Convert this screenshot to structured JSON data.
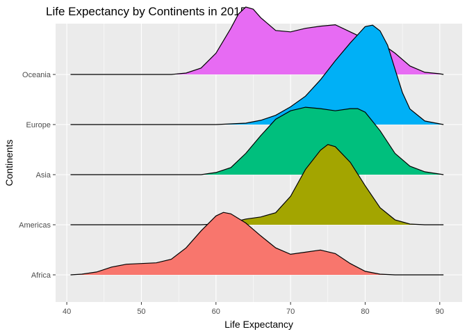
{
  "chart_data": {
    "type": "ridgeline",
    "title": "Life Expectancy by Continents in 2015",
    "xlabel": "Life Expectancy",
    "ylabel": "Continents",
    "xlim": [
      38.5,
      93
    ],
    "x_ticks": [
      40,
      50,
      60,
      70,
      80,
      90
    ],
    "categories": [
      "Africa",
      "Americas",
      "Asia",
      "Europe",
      "Oceania"
    ],
    "grid": true,
    "legend": "none",
    "series": [
      {
        "name": "Africa",
        "color": "#F8766D",
        "density": [
          [
            40.5,
            0
          ],
          [
            42,
            0.01
          ],
          [
            44,
            0.04
          ],
          [
            46,
            0.11
          ],
          [
            48,
            0.15
          ],
          [
            50,
            0.16
          ],
          [
            52,
            0.17
          ],
          [
            54,
            0.22
          ],
          [
            56,
            0.38
          ],
          [
            58,
            0.62
          ],
          [
            60,
            0.83
          ],
          [
            61,
            0.88
          ],
          [
            62,
            0.86
          ],
          [
            64,
            0.73
          ],
          [
            66,
            0.55
          ],
          [
            68,
            0.38
          ],
          [
            70,
            0.29
          ],
          [
            72,
            0.32
          ],
          [
            74,
            0.35
          ],
          [
            76,
            0.3
          ],
          [
            78,
            0.16
          ],
          [
            80,
            0.05
          ],
          [
            82,
            0.01
          ],
          [
            84,
            0
          ],
          [
            90.5,
            0
          ]
        ]
      },
      {
        "name": "Americas",
        "color": "#A3A500",
        "density": [
          [
            40.5,
            0
          ],
          [
            58,
            0
          ],
          [
            60,
            0.01
          ],
          [
            62,
            0.03
          ],
          [
            64,
            0.08
          ],
          [
            66,
            0.11
          ],
          [
            68,
            0.17
          ],
          [
            70,
            0.4
          ],
          [
            72,
            0.78
          ],
          [
            74,
            1.05
          ],
          [
            75,
            1.13
          ],
          [
            76,
            1.1
          ],
          [
            78,
            0.88
          ],
          [
            80,
            0.55
          ],
          [
            82,
            0.24
          ],
          [
            84,
            0.07
          ],
          [
            86,
            0.01
          ],
          [
            88,
            0
          ],
          [
            90.5,
            0
          ]
        ]
      },
      {
        "name": "Asia",
        "color": "#00BF7D",
        "density": [
          [
            40.5,
            0
          ],
          [
            58,
            0
          ],
          [
            60,
            0.03
          ],
          [
            62,
            0.1
          ],
          [
            64,
            0.3
          ],
          [
            66,
            0.55
          ],
          [
            68,
            0.78
          ],
          [
            70,
            0.9
          ],
          [
            72,
            0.95
          ],
          [
            74,
            0.93
          ],
          [
            76,
            0.9
          ],
          [
            78,
            0.93
          ],
          [
            79,
            0.93
          ],
          [
            80,
            0.88
          ],
          [
            82,
            0.62
          ],
          [
            84,
            0.3
          ],
          [
            86,
            0.12
          ],
          [
            88,
            0.04
          ],
          [
            90.5,
            0
          ]
        ]
      },
      {
        "name": "Europe",
        "color": "#00B0F6",
        "density": [
          [
            40.5,
            0
          ],
          [
            60,
            0
          ],
          [
            62,
            0.01
          ],
          [
            64,
            0.02
          ],
          [
            66,
            0.06
          ],
          [
            68,
            0.13
          ],
          [
            70,
            0.25
          ],
          [
            72,
            0.4
          ],
          [
            74,
            0.63
          ],
          [
            76,
            0.9
          ],
          [
            78,
            1.15
          ],
          [
            80,
            1.38
          ],
          [
            81,
            1.4
          ],
          [
            82,
            1.32
          ],
          [
            83,
            1.12
          ],
          [
            84,
            0.78
          ],
          [
            85,
            0.45
          ],
          [
            86,
            0.22
          ],
          [
            88,
            0.05
          ],
          [
            90,
            0.01
          ],
          [
            90.5,
            0
          ]
        ]
      },
      {
        "name": "Oceania",
        "color": "#E76BF3",
        "density": [
          [
            40.5,
            0
          ],
          [
            54,
            0
          ],
          [
            56,
            0.02
          ],
          [
            58,
            0.09
          ],
          [
            60,
            0.3
          ],
          [
            62,
            0.65
          ],
          [
            63,
            0.85
          ],
          [
            64,
            0.95
          ],
          [
            65,
            0.92
          ],
          [
            66,
            0.8
          ],
          [
            68,
            0.62
          ],
          [
            70,
            0.6
          ],
          [
            72,
            0.65
          ],
          [
            74,
            0.68
          ],
          [
            76,
            0.7
          ],
          [
            78,
            0.6
          ],
          [
            80,
            0.5
          ],
          [
            82,
            0.45
          ],
          [
            84,
            0.3
          ],
          [
            86,
            0.12
          ],
          [
            88,
            0.03
          ],
          [
            90,
            0.01
          ],
          [
            90.5,
            0
          ]
        ]
      }
    ]
  }
}
